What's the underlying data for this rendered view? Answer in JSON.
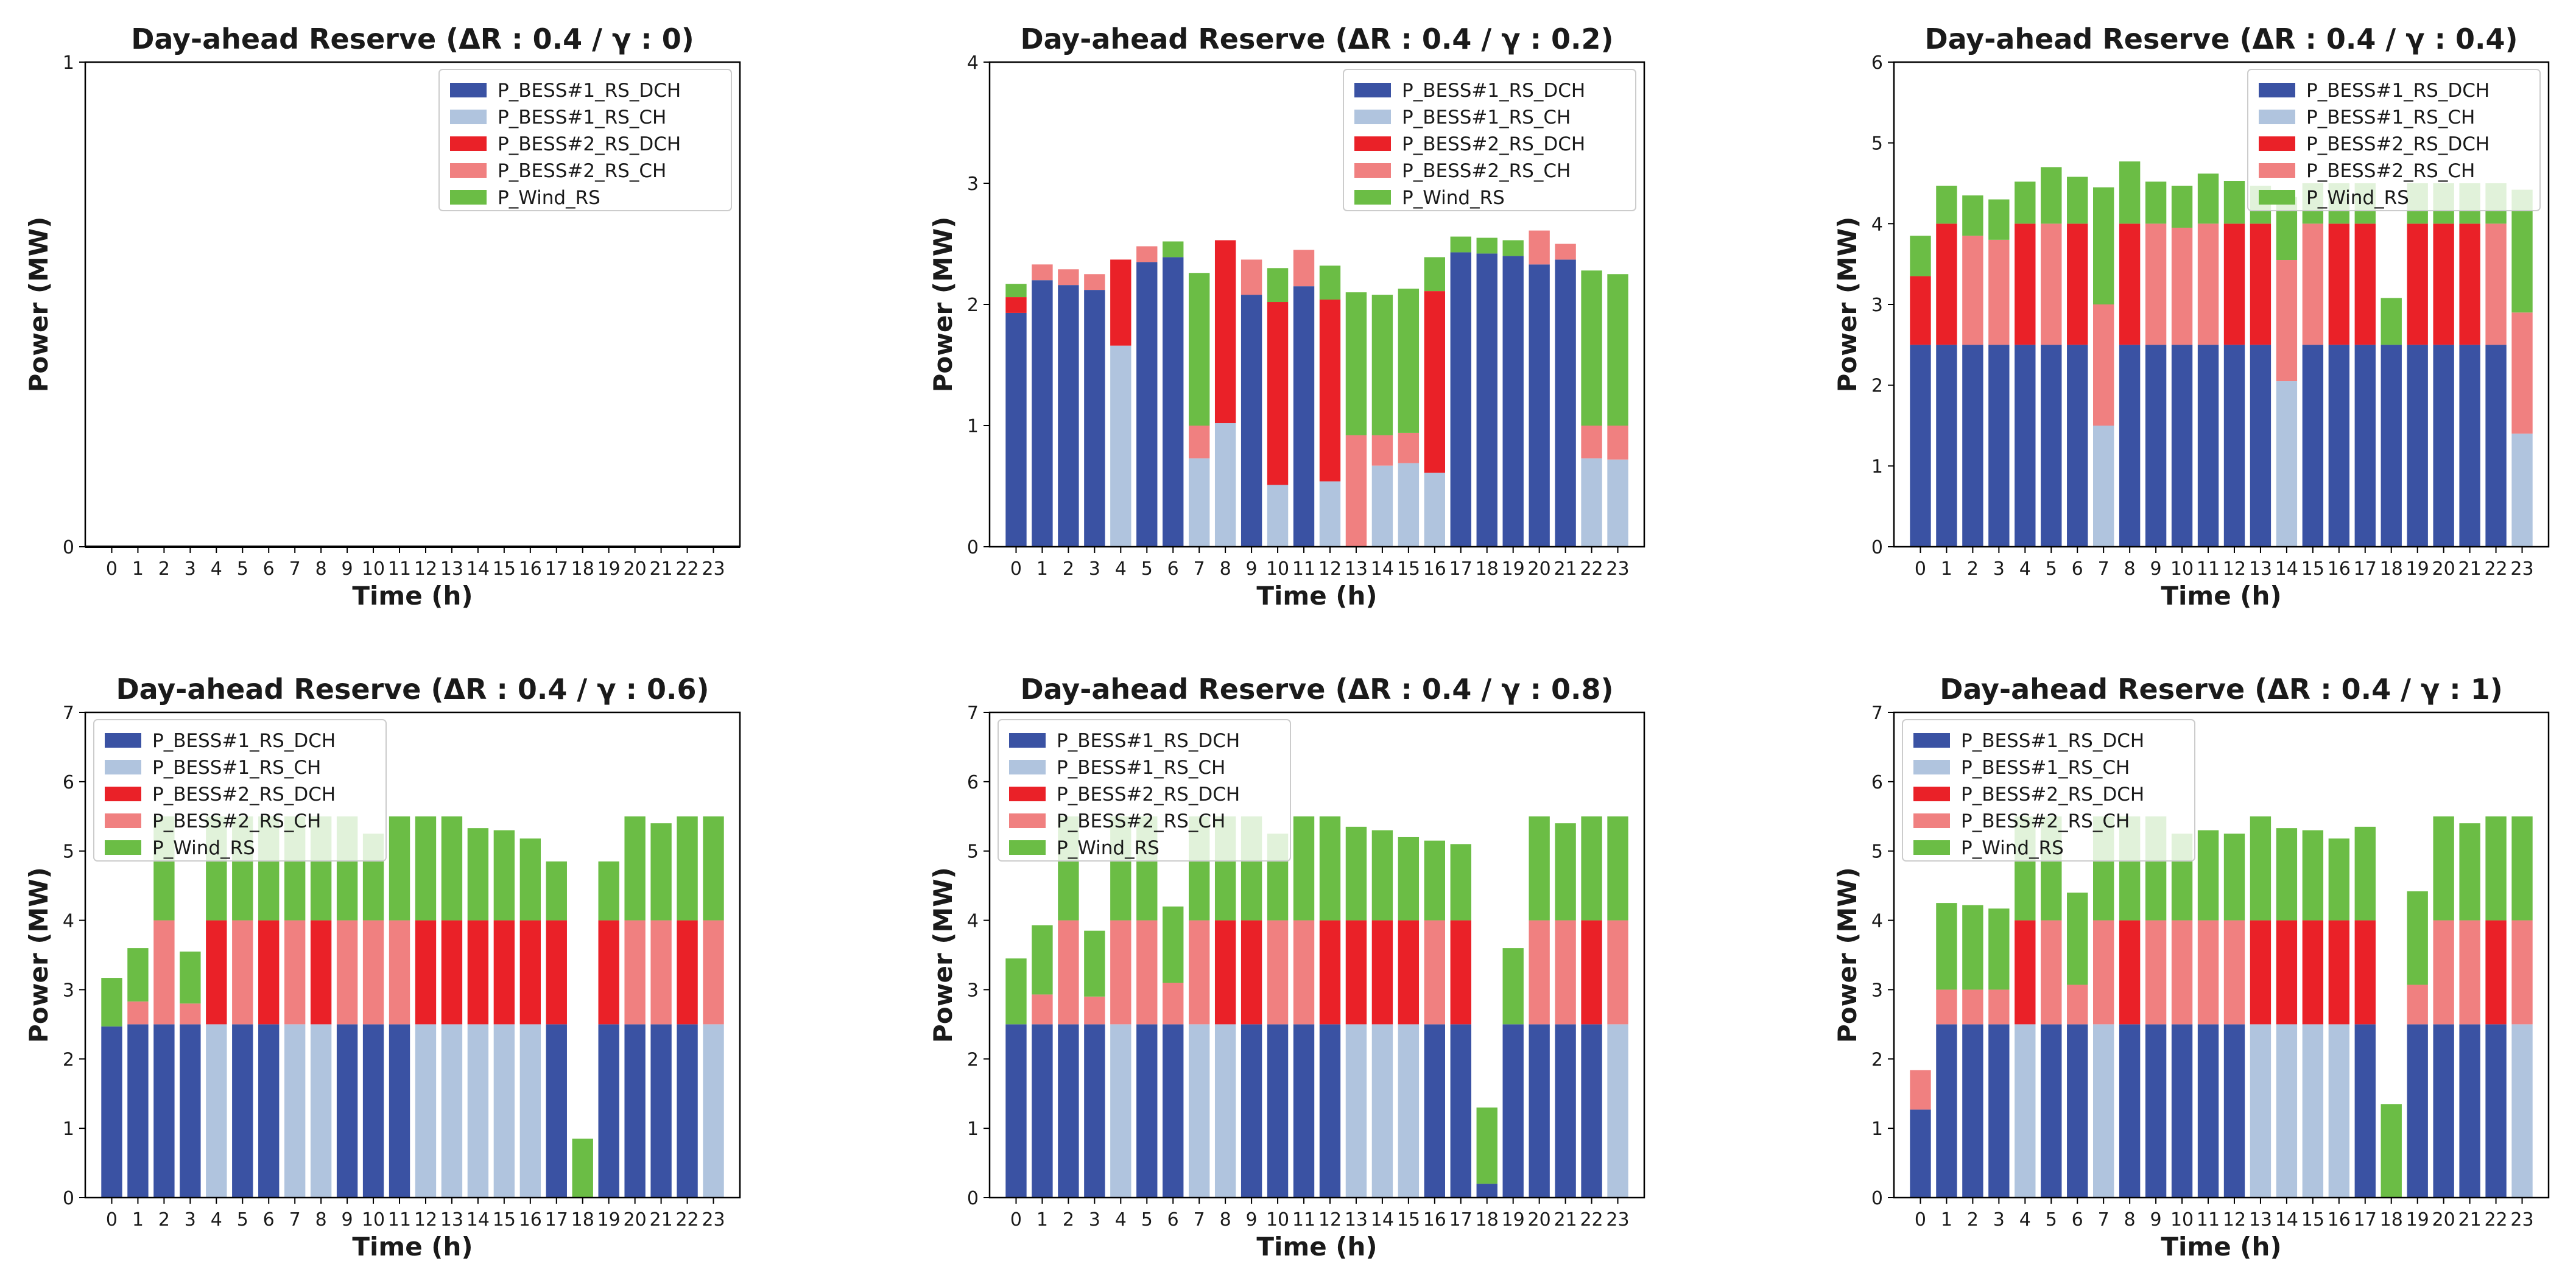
{
  "chart_data": [
    {
      "type": "bar",
      "stacked": true,
      "title": "Day-ahead Reserve (ΔR : 0.4 / γ : 0)",
      "xlabel": "Time (h)",
      "ylabel": "Power (MW)",
      "ylim": [
        0,
        1
      ],
      "yticks": [
        0,
        1
      ],
      "legend_position": "top-right",
      "categories": [
        "0",
        "1",
        "2",
        "3",
        "4",
        "5",
        "6",
        "7",
        "8",
        "9",
        "10",
        "11",
        "12",
        "13",
        "14",
        "15",
        "16",
        "17",
        "18",
        "19",
        "20",
        "21",
        "22",
        "23"
      ],
      "series": [
        {
          "name": "P_BESS#1_RS_DCH",
          "color": "#3a52a3",
          "values": [
            0,
            0,
            0,
            0,
            0,
            0,
            0,
            0,
            0,
            0,
            0,
            0,
            0,
            0,
            0,
            0,
            0,
            0,
            0,
            0,
            0,
            0,
            0,
            0
          ]
        },
        {
          "name": "P_BESS#1_RS_CH",
          "color": "#b0c4de",
          "values": [
            0,
            0,
            0,
            0,
            0,
            0,
            0,
            0,
            0,
            0,
            0,
            0,
            0,
            0,
            0,
            0,
            0,
            0,
            0,
            0,
            0,
            0,
            0,
            0
          ]
        },
        {
          "name": "P_BESS#2_RS_DCH",
          "color": "#ea2128",
          "values": [
            0,
            0,
            0,
            0,
            0,
            0,
            0,
            0,
            0,
            0,
            0,
            0,
            0,
            0,
            0,
            0,
            0,
            0,
            0,
            0,
            0,
            0,
            0,
            0
          ]
        },
        {
          "name": "P_BESS#2_RS_CH",
          "color": "#f08080",
          "values": [
            0,
            0,
            0,
            0,
            0,
            0,
            0,
            0,
            0,
            0,
            0,
            0,
            0,
            0,
            0,
            0,
            0,
            0,
            0,
            0,
            0,
            0,
            0,
            0
          ]
        },
        {
          "name": "P_Wind_RS",
          "color": "#6bbd45",
          "values": [
            0,
            0,
            0,
            0,
            0,
            0,
            0,
            0,
            0,
            0,
            0,
            0,
            0,
            0,
            0,
            0,
            0,
            0,
            0,
            0,
            0,
            0,
            0,
            0
          ]
        }
      ]
    },
    {
      "type": "bar",
      "stacked": true,
      "title": "Day-ahead Reserve (ΔR : 0.4 / γ : 0.2)",
      "xlabel": "Time (h)",
      "ylabel": "Power (MW)",
      "ylim": [
        0,
        4
      ],
      "yticks": [
        0,
        1,
        2,
        3,
        4
      ],
      "legend_position": "top-right",
      "categories": [
        "0",
        "1",
        "2",
        "3",
        "4",
        "5",
        "6",
        "7",
        "8",
        "9",
        "10",
        "11",
        "12",
        "13",
        "14",
        "15",
        "16",
        "17",
        "18",
        "19",
        "20",
        "21",
        "22",
        "23"
      ],
      "series": [
        {
          "name": "P_BESS#1_RS_DCH",
          "color": "#3a52a3",
          "values": [
            1.93,
            2.2,
            2.16,
            2.12,
            0,
            2.35,
            2.39,
            0,
            0,
            2.08,
            0,
            2.15,
            0,
            0,
            0,
            0,
            0,
            2.43,
            2.42,
            2.4,
            2.33,
            2.37,
            0,
            0
          ]
        },
        {
          "name": "P_BESS#1_RS_CH",
          "color": "#b0c4de",
          "values": [
            0,
            0,
            0,
            0,
            1.66,
            0,
            0,
            0.73,
            1.02,
            0,
            0.51,
            0,
            0.54,
            0,
            0.67,
            0.69,
            0.61,
            0,
            0,
            0,
            0,
            0,
            0.73,
            0.72
          ]
        },
        {
          "name": "P_BESS#2_RS_DCH",
          "color": "#ea2128",
          "values": [
            0.13,
            0,
            0,
            0,
            0.71,
            0,
            0,
            0,
            1.51,
            0,
            1.51,
            0,
            1.5,
            0,
            0,
            0,
            1.5,
            0,
            0,
            0,
            0,
            0,
            0,
            0
          ]
        },
        {
          "name": "P_BESS#2_RS_CH",
          "color": "#f08080",
          "values": [
            0,
            0.13,
            0.13,
            0.13,
            0,
            0.13,
            0,
            0.27,
            0,
            0.29,
            0,
            0.3,
            0,
            0.92,
            0.25,
            0.25,
            0,
            0,
            0,
            0,
            0.28,
            0.13,
            0.27,
            0.28
          ]
        },
        {
          "name": "P_Wind_RS",
          "color": "#6bbd45",
          "values": [
            0.11,
            0,
            0,
            0,
            0,
            0,
            0.13,
            1.26,
            0,
            0,
            0.28,
            0,
            0.28,
            1.18,
            1.16,
            1.19,
            0.28,
            0.13,
            0.13,
            0.13,
            0,
            0,
            1.28,
            1.25
          ]
        }
      ]
    },
    {
      "type": "bar",
      "stacked": true,
      "title": "Day-ahead Reserve (ΔR : 0.4 / γ : 0.4)",
      "xlabel": "Time (h)",
      "ylabel": "Power (MW)",
      "ylim": [
        0,
        6
      ],
      "yticks": [
        0,
        1,
        2,
        3,
        4,
        5,
        6
      ],
      "legend_position": "top-right",
      "categories": [
        "0",
        "1",
        "2",
        "3",
        "4",
        "5",
        "6",
        "7",
        "8",
        "9",
        "10",
        "11",
        "12",
        "13",
        "14",
        "15",
        "16",
        "17",
        "18",
        "19",
        "20",
        "21",
        "22",
        "23"
      ],
      "series": [
        {
          "name": "P_BESS#1_RS_DCH",
          "color": "#3a52a3",
          "values": [
            2.5,
            2.5,
            2.5,
            2.5,
            2.5,
            2.5,
            2.5,
            0,
            2.5,
            2.5,
            2.5,
            2.5,
            2.5,
            2.5,
            0,
            2.5,
            2.5,
            2.5,
            2.5,
            2.5,
            2.5,
            2.5,
            2.5,
            0
          ]
        },
        {
          "name": "P_BESS#1_RS_CH",
          "color": "#b0c4de",
          "values": [
            0,
            0,
            0,
            0,
            0,
            0,
            0,
            1.5,
            0,
            0,
            0,
            0,
            0,
            0,
            2.05,
            0,
            0,
            0,
            0,
            0,
            0,
            0,
            0,
            1.4
          ]
        },
        {
          "name": "P_BESS#2_RS_DCH",
          "color": "#ea2128",
          "values": [
            0.85,
            1.5,
            0,
            0,
            1.5,
            0,
            1.5,
            0,
            1.5,
            0,
            0,
            0,
            1.5,
            1.5,
            0,
            0,
            1.5,
            1.5,
            0,
            1.5,
            1.5,
            1.5,
            0,
            0
          ]
        },
        {
          "name": "P_BESS#2_RS_CH",
          "color": "#f08080",
          "values": [
            0,
            0,
            1.35,
            1.3,
            0,
            1.5,
            0,
            1.5,
            0,
            1.5,
            1.45,
            1.5,
            0,
            0,
            1.5,
            1.5,
            0,
            0,
            0,
            0,
            0,
            0,
            1.5,
            1.5
          ]
        },
        {
          "name": "P_Wind_RS",
          "color": "#6bbd45",
          "values": [
            0.5,
            0.47,
            0.5,
            0.5,
            0.52,
            0.7,
            0.58,
            1.45,
            0.77,
            0.52,
            0.52,
            0.62,
            0.53,
            0.47,
            0.78,
            0.5,
            0.5,
            0.5,
            0.58,
            0.5,
            0.5,
            0.5,
            0.5,
            1.52
          ]
        }
      ]
    },
    {
      "type": "bar",
      "stacked": true,
      "title": "Day-ahead Reserve (ΔR : 0.4 / γ : 0.6)",
      "xlabel": "Time (h)",
      "ylabel": "Power (MW)",
      "ylim": [
        0,
        7
      ],
      "yticks": [
        0,
        1,
        2,
        3,
        4,
        5,
        6,
        7
      ],
      "legend_position": "top-left",
      "categories": [
        "0",
        "1",
        "2",
        "3",
        "4",
        "5",
        "6",
        "7",
        "8",
        "9",
        "10",
        "11",
        "12",
        "13",
        "14",
        "15",
        "16",
        "17",
        "18",
        "19",
        "20",
        "21",
        "22",
        "23"
      ],
      "series": [
        {
          "name": "P_BESS#1_RS_DCH",
          "color": "#3a52a3",
          "values": [
            2.47,
            2.5,
            2.5,
            2.5,
            0,
            2.5,
            2.5,
            0,
            0,
            2.5,
            2.5,
            2.5,
            0,
            0,
            0,
            0,
            0,
            2.5,
            0,
            2.5,
            2.5,
            2.5,
            2.5,
            0
          ]
        },
        {
          "name": "P_BESS#1_RS_CH",
          "color": "#b0c4de",
          "values": [
            0,
            0,
            0,
            0,
            2.5,
            0,
            0,
            2.5,
            2.5,
            0,
            0,
            0,
            2.5,
            2.5,
            2.5,
            2.5,
            2.5,
            0,
            0,
            0,
            0,
            0,
            0,
            2.5
          ]
        },
        {
          "name": "P_BESS#2_RS_DCH",
          "color": "#ea2128",
          "values": [
            0,
            0,
            0,
            0,
            1.5,
            0,
            1.5,
            0,
            1.5,
            0,
            0,
            0,
            1.5,
            1.5,
            1.5,
            1.5,
            1.5,
            1.5,
            0,
            1.5,
            0,
            0,
            1.5,
            0
          ]
        },
        {
          "name": "P_BESS#2_RS_CH",
          "color": "#f08080",
          "values": [
            0,
            0.33,
            1.5,
            0.3,
            0,
            1.5,
            0,
            1.5,
            0,
            1.5,
            1.5,
            1.5,
            0,
            0,
            0,
            0,
            0,
            0,
            0,
            0,
            1.5,
            1.5,
            0,
            1.5
          ]
        },
        {
          "name": "P_Wind_RS",
          "color": "#6bbd45",
          "values": [
            0.7,
            0.77,
            1.5,
            0.75,
            1.5,
            1.5,
            1.5,
            1.5,
            1.5,
            1.5,
            1.25,
            1.5,
            1.5,
            1.5,
            1.33,
            1.3,
            1.18,
            0.85,
            0.85,
            0.85,
            1.5,
            1.4,
            1.5,
            1.5
          ]
        }
      ]
    },
    {
      "type": "bar",
      "stacked": true,
      "title": "Day-ahead Reserve (ΔR : 0.4 / γ : 0.8)",
      "xlabel": "Time (h)",
      "ylabel": "Power (MW)",
      "ylim": [
        0,
        7
      ],
      "yticks": [
        0,
        1,
        2,
        3,
        4,
        5,
        6,
        7
      ],
      "legend_position": "top-left",
      "categories": [
        "0",
        "1",
        "2",
        "3",
        "4",
        "5",
        "6",
        "7",
        "8",
        "9",
        "10",
        "11",
        "12",
        "13",
        "14",
        "15",
        "16",
        "17",
        "18",
        "19",
        "20",
        "21",
        "22",
        "23"
      ],
      "series": [
        {
          "name": "P_BESS#1_RS_DCH",
          "color": "#3a52a3",
          "values": [
            2.5,
            2.5,
            2.5,
            2.5,
            0,
            2.5,
            2.5,
            0,
            0,
            2.5,
            2.5,
            2.5,
            2.5,
            0,
            0,
            0,
            2.5,
            2.5,
            0.2,
            2.5,
            2.5,
            2.5,
            2.5,
            0
          ]
        },
        {
          "name": "P_BESS#1_RS_CH",
          "color": "#b0c4de",
          "values": [
            0,
            0,
            0,
            0,
            2.5,
            0,
            0,
            2.5,
            2.5,
            0,
            0,
            0,
            0,
            2.5,
            2.5,
            2.5,
            0,
            0,
            0,
            0,
            0,
            0,
            0,
            2.5
          ]
        },
        {
          "name": "P_BESS#2_RS_DCH",
          "color": "#ea2128",
          "values": [
            0,
            0,
            0,
            0,
            0,
            0,
            0,
            0,
            1.5,
            1.5,
            0,
            0,
            1.5,
            1.5,
            1.5,
            1.5,
            0,
            1.5,
            0,
            0,
            0,
            0,
            1.5,
            0
          ]
        },
        {
          "name": "P_BESS#2_RS_CH",
          "color": "#f08080",
          "values": [
            0,
            0.43,
            1.5,
            0.4,
            1.5,
            1.5,
            0.6,
            1.5,
            0,
            0,
            1.5,
            1.5,
            0,
            0,
            0,
            0,
            1.5,
            0,
            0,
            0,
            1.5,
            1.5,
            0,
            1.5
          ]
        },
        {
          "name": "P_Wind_RS",
          "color": "#6bbd45",
          "values": [
            0.95,
            1.0,
            1.5,
            0.95,
            1.5,
            1.5,
            1.1,
            1.5,
            1.5,
            1.5,
            1.25,
            1.5,
            1.5,
            1.35,
            1.3,
            1.2,
            1.15,
            1.1,
            1.1,
            1.1,
            1.5,
            1.4,
            1.5,
            1.5
          ]
        }
      ]
    },
    {
      "type": "bar",
      "stacked": true,
      "title": "Day-ahead Reserve (ΔR : 0.4 / γ : 1)",
      "xlabel": "Time (h)",
      "ylabel": "Power (MW)",
      "ylim": [
        0,
        7
      ],
      "yticks": [
        0,
        1,
        2,
        3,
        4,
        5,
        6,
        7
      ],
      "legend_position": "top-left",
      "categories": [
        "0",
        "1",
        "2",
        "3",
        "4",
        "5",
        "6",
        "7",
        "8",
        "9",
        "10",
        "11",
        "12",
        "13",
        "14",
        "15",
        "16",
        "17",
        "18",
        "19",
        "20",
        "21",
        "22",
        "23"
      ],
      "series": [
        {
          "name": "P_BESS#1_RS_DCH",
          "color": "#3a52a3",
          "values": [
            1.27,
            2.5,
            2.5,
            2.5,
            0,
            2.5,
            2.5,
            0,
            2.5,
            2.5,
            2.5,
            2.5,
            2.5,
            0,
            0,
            0,
            0,
            2.5,
            0,
            2.5,
            2.5,
            2.5,
            2.5,
            0
          ]
        },
        {
          "name": "P_BESS#1_RS_CH",
          "color": "#b0c4de",
          "values": [
            0,
            0,
            0,
            0,
            2.5,
            0,
            0,
            2.5,
            0,
            0,
            0,
            0,
            0,
            2.5,
            2.5,
            2.5,
            2.5,
            0,
            0,
            0,
            0,
            0,
            0,
            2.5
          ]
        },
        {
          "name": "P_BESS#2_RS_DCH",
          "color": "#ea2128",
          "values": [
            0,
            0,
            0,
            0,
            1.5,
            0,
            0,
            0,
            1.5,
            0,
            0,
            0,
            0,
            1.5,
            1.5,
            1.5,
            1.5,
            1.5,
            0,
            0,
            0,
            0,
            1.5,
            0
          ]
        },
        {
          "name": "P_BESS#2_RS_CH",
          "color": "#f08080",
          "values": [
            0.57,
            0.5,
            0.5,
            0.5,
            0,
            1.5,
            0.57,
            1.5,
            0,
            1.5,
            1.5,
            1.5,
            1.5,
            0,
            0,
            0,
            0,
            0,
            0,
            0.57,
            1.5,
            1.5,
            0,
            1.5
          ]
        },
        {
          "name": "P_Wind_RS",
          "color": "#6bbd45",
          "values": [
            0,
            1.25,
            1.22,
            1.17,
            1.5,
            1.5,
            1.33,
            1.5,
            1.5,
            1.5,
            1.25,
            1.3,
            1.25,
            1.5,
            1.33,
            1.3,
            1.18,
            1.35,
            1.35,
            1.35,
            1.5,
            1.4,
            1.5,
            1.5
          ]
        }
      ]
    }
  ]
}
